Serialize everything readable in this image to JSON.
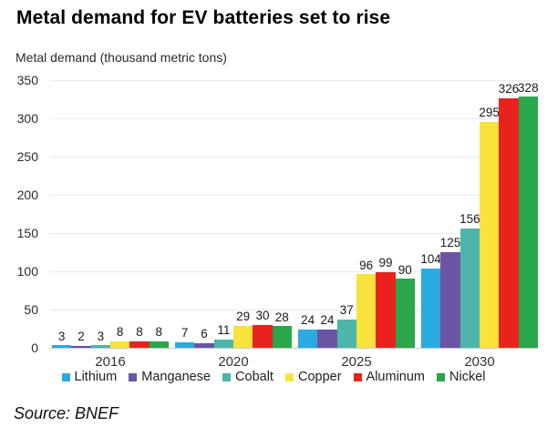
{
  "source": "Source: BNEF",
  "chart_data": {
    "type": "bar",
    "title": "Metal demand for EV batteries set to rise",
    "ylabel": "Metal demand (thousand metric tons)",
    "xlabel": "",
    "categories": [
      "2016",
      "2020",
      "2025",
      "2030"
    ],
    "series": [
      {
        "name": "Lithium",
        "color": "#29abe2",
        "values": [
          3,
          7,
          24,
          104
        ]
      },
      {
        "name": "Manganese",
        "color": "#6a55a4",
        "values": [
          2,
          6,
          24,
          125
        ]
      },
      {
        "name": "Cobalt",
        "color": "#4cb6ab",
        "values": [
          3,
          11,
          37,
          156
        ]
      },
      {
        "name": "Copper",
        "color": "#f8e23b",
        "values": [
          8,
          29,
          96,
          295
        ]
      },
      {
        "name": "Aluminum",
        "color": "#e8231e",
        "values": [
          8,
          30,
          99,
          326
        ]
      },
      {
        "name": "Nickel",
        "color": "#2aa64c",
        "values": [
          8,
          28,
          90,
          328
        ]
      }
    ],
    "ylim": [
      0,
      350
    ],
    "yticks": [
      0,
      50,
      100,
      150,
      200,
      250,
      300,
      350
    ],
    "grid": true,
    "legend_position": "bottom"
  }
}
